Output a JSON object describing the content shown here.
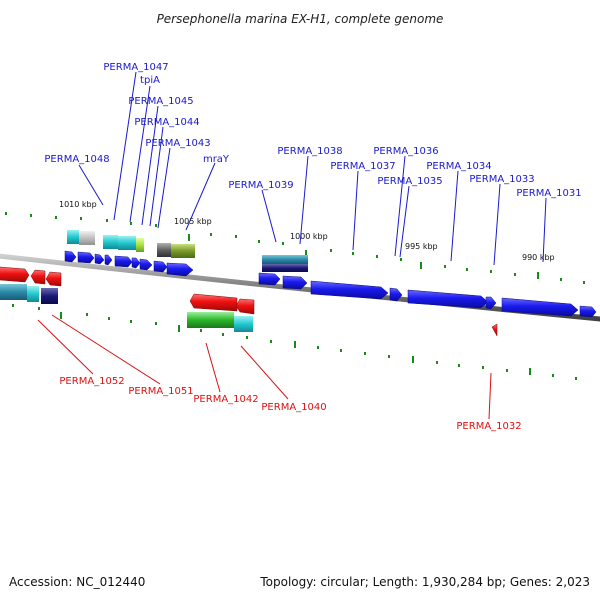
{
  "title": "Persephonella marina EX-H1, complete genome",
  "footer": {
    "accession": "Accession: NC_012440",
    "summary": "Topology: circular; Length: 1,930,284 bp; Genes: 2,023"
  },
  "colors": {
    "forward_label": "#1a1acc",
    "reverse_label": "#dd1111",
    "backbone": "#7a7a7a",
    "tick": "#1a8a1a",
    "forward_gene": "#1a1aee",
    "reverse_gene": "#ee1111"
  },
  "scale": {
    "ticks": [
      "1010 kbp",
      "1005 kbp",
      "1000 kbp",
      "995 kbp",
      "990 kbp"
    ]
  },
  "forward_labels": [
    "PERMA_1047",
    "tpiA",
    "PERMA_1045",
    "PERMA_1044",
    "PERMA_1043",
    "mraY",
    "PERMA_1048",
    "PERMA_1038",
    "PERMA_1037",
    "PERMA_1036",
    "PERMA_1035",
    "PERMA_1034",
    "PERMA_1033",
    "PERMA_1031",
    "PERMA_1039"
  ],
  "reverse_labels": [
    "PERMA_1052",
    "PERMA_1051",
    "PERMA_1042",
    "PERMA_1040",
    "PERMA_1032"
  ]
}
